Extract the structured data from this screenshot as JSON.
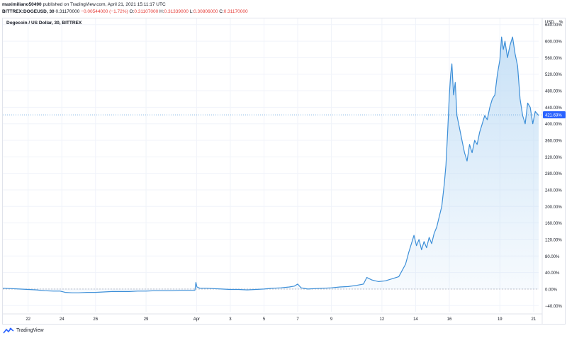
{
  "header": {
    "username": "maximiliano50490",
    "published": "published on TradingView.com, April 21, 2021 15:11:17 UTC",
    "symbol": "BITTREX:DOGEUSD, 30",
    "last": "0.31170000",
    "change": "−0.00544000 (−1.72%)",
    "open_label": "O:",
    "open": "0.31107000",
    "high_label": "H:",
    "high": "0.31339000",
    "low_label": "L:",
    "low": "0.30806000",
    "close_label": "C:",
    "close": "0.31170000"
  },
  "chart_title": "Dogecoin / US Dollar, 30, BITTREX",
  "unit_label": "USD",
  "unit_pct": "%",
  "footer": {
    "brand": "TradingView"
  },
  "colors": {
    "line": "#3d8fd8",
    "fill_top": "#bfdcf5",
    "grid": "#f0f3fa",
    "badge": "#2962ff",
    "baseline": "#b2b5be"
  },
  "chart_data": {
    "type": "area",
    "y_unit": "%",
    "ylim": [
      -55,
      655
    ],
    "yticks": [
      -40,
      0,
      40,
      80,
      120,
      160,
      200,
      240,
      280,
      320,
      360,
      400,
      440,
      480,
      520,
      560,
      600,
      640
    ],
    "ytick_labels": [
      "−40.00%",
      "0.00%",
      "40.00%",
      "80.00%",
      "120.00%",
      "160.00%",
      "200.00%",
      "240.00%",
      "280.00%",
      "320.00%",
      "360.00%",
      "400.00%",
      "440.00%",
      "480.00%",
      "520.00%",
      "560.00%",
      "600.00%",
      "640.00%"
    ],
    "xlim": [
      20.5,
      52.3
    ],
    "xticks": [
      {
        "x": 22,
        "label": "22"
      },
      {
        "x": 24,
        "label": "24"
      },
      {
        "x": 26,
        "label": "26"
      },
      {
        "x": 29,
        "label": "29"
      },
      {
        "x": 32,
        "label": "Apr"
      },
      {
        "x": 34,
        "label": "3"
      },
      {
        "x": 36,
        "label": "5"
      },
      {
        "x": 38,
        "label": "7"
      },
      {
        "x": 40,
        "label": "9"
      },
      {
        "x": 43,
        "label": "12"
      },
      {
        "x": 45,
        "label": "14"
      },
      {
        "x": 47,
        "label": "16"
      },
      {
        "x": 50,
        "label": "19"
      },
      {
        "x": 52,
        "label": "21"
      }
    ],
    "grid": true,
    "current_value": 421.69,
    "current_label": "421.69%",
    "series": [
      {
        "x": [
          20.5,
          21,
          21.5,
          22,
          22.5,
          23,
          23.5,
          23.9,
          24.2,
          24.6,
          25,
          25.5,
          26,
          26.5,
          27,
          27.5,
          28,
          28.5,
          29,
          29.5,
          30,
          30.5,
          31,
          31.5,
          31.9,
          31.96,
          32.02,
          32.2,
          32.6,
          33,
          33.5,
          34,
          34.5,
          35,
          35.5,
          36,
          36.5,
          37,
          37.5,
          37.8,
          38,
          38.2,
          38.6,
          39,
          39.5,
          40,
          40.5,
          41,
          41.5,
          41.9,
          42.1,
          42.4,
          42.8,
          43.2,
          43.6,
          44,
          44.2,
          44.4,
          44.6,
          44.75,
          44.9,
          45.05,
          45.2,
          45.35,
          45.5,
          45.65,
          45.8,
          45.95,
          46.1,
          46.25,
          46.4,
          46.55,
          46.7,
          46.8,
          46.9,
          47,
          47.08,
          47.15,
          47.25,
          47.35,
          47.45,
          47.6,
          47.75,
          47.9,
          48.05,
          48.2,
          48.35,
          48.5,
          48.65,
          48.8,
          48.95,
          49.1,
          49.25,
          49.4,
          49.55,
          49.7,
          49.85,
          50,
          50.1,
          50.2,
          50.3,
          50.45,
          50.6,
          50.75,
          50.9,
          51.05,
          51.2,
          51.35,
          51.5,
          51.65,
          51.8,
          51.95,
          52.1,
          52.3
        ],
        "y": [
          2,
          1,
          0,
          -1,
          -2,
          -4,
          -5,
          -5,
          -8,
          -9,
          -9,
          -8,
          -8,
          -7,
          -6,
          -6,
          -6,
          -5,
          -5,
          -4,
          -4,
          -4,
          -3,
          -3,
          -3,
          16,
          5,
          2,
          2,
          1,
          0,
          -1,
          -1,
          -2,
          -1,
          0,
          2,
          3,
          5,
          7,
          12,
          3,
          0,
          1,
          2,
          3,
          5,
          6,
          9,
          12,
          28,
          22,
          18,
          20,
          25,
          30,
          45,
          60,
          90,
          110,
          130,
          105,
          120,
          95,
          115,
          100,
          125,
          110,
          135,
          150,
          175,
          200,
          255,
          300,
          380,
          470,
          520,
          545,
          470,
          500,
          420,
          390,
          360,
          330,
          310,
          350,
          330,
          360,
          350,
          380,
          400,
          420,
          410,
          440,
          460,
          470,
          520,
          555,
          610,
          580,
          600,
          560,
          590,
          610,
          570,
          540,
          460,
          420,
          400,
          450,
          440,
          400,
          430,
          420
        ]
      }
    ]
  }
}
